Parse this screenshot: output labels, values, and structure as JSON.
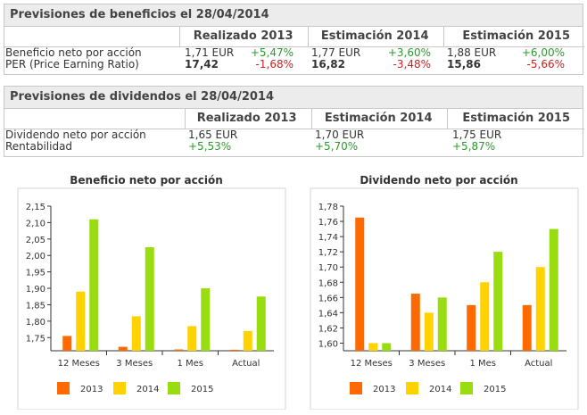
{
  "beneficios": {
    "title": "Previsiones de beneficios el 28/04/2014",
    "headers": [
      "Realizado 2013",
      "Estimación 2014",
      "Estimación 2015"
    ],
    "rows": [
      {
        "label": "Beneficio neto por acción",
        "v1": "1,71 EUR",
        "c1": "+5,47%",
        "v2": "1,77 EUR",
        "c2": "+3,60%",
        "v3": "1,88 EUR",
        "c3": "+6,00%"
      },
      {
        "label": "PER (Price Earning Ratio)",
        "v1": "17,42",
        "c1": "-1,68%",
        "v2": "16,82",
        "c2": "-3,48%",
        "v3": "15,86",
        "c3": "-5,66%"
      }
    ]
  },
  "dividendos": {
    "title": "Previsiones de dividendos el 28/04/2014",
    "headers": [
      "Realizado 2013",
      "Estimación 2014",
      "Estimación 2015"
    ],
    "rows": [
      {
        "label": "Dividendo neto por acción",
        "v1": "1,65 EUR",
        "v2": "1,70 EUR",
        "v3": "1,75 EUR"
      },
      {
        "label": "Rentabilidad",
        "v1": "+5,53%",
        "v2": "+5,70%",
        "v3": "+5,87%"
      }
    ]
  },
  "colors": {
    "s2013": "#ff6a00",
    "s2014": "#ffd200",
    "s2015": "#99dd11"
  },
  "chart_data": [
    {
      "type": "bar",
      "title": "Beneficio neto por acción",
      "categories": [
        "12 Meses",
        "3 Meses",
        "1 Mes",
        "Actual"
      ],
      "series": [
        {
          "name": "2013",
          "values": [
            1.755,
            1.722,
            1.714,
            1.713
          ]
        },
        {
          "name": "2014",
          "values": [
            1.89,
            1.815,
            1.785,
            1.77
          ]
        },
        {
          "name": "2015",
          "values": [
            2.11,
            2.025,
            1.9,
            1.875
          ]
        }
      ],
      "yticks": [
        "2,15",
        "2,10",
        "2,05",
        "2,00",
        "1,95",
        "1,90",
        "1,85",
        "1,80",
        "1,75"
      ],
      "ylim": [
        1.71,
        2.15
      ]
    },
    {
      "type": "bar",
      "title": "Dividendo neto por acción",
      "categories": [
        "12 Meses",
        "3 Meses",
        "1 Mes",
        "Actual"
      ],
      "series": [
        {
          "name": "2013",
          "values": [
            1.765,
            1.665,
            1.65,
            1.65
          ]
        },
        {
          "name": "2014",
          "values": [
            1.6,
            1.64,
            1.68,
            1.7
          ]
        },
        {
          "name": "2015",
          "values": [
            1.6,
            1.66,
            1.72,
            1.75
          ]
        }
      ],
      "yticks": [
        "1,78",
        "1,76",
        "1,74",
        "1,72",
        "1,70",
        "1,68",
        "1,66",
        "1,64",
        "1,62",
        "1,60"
      ],
      "ylim": [
        1.59,
        1.78
      ]
    }
  ]
}
